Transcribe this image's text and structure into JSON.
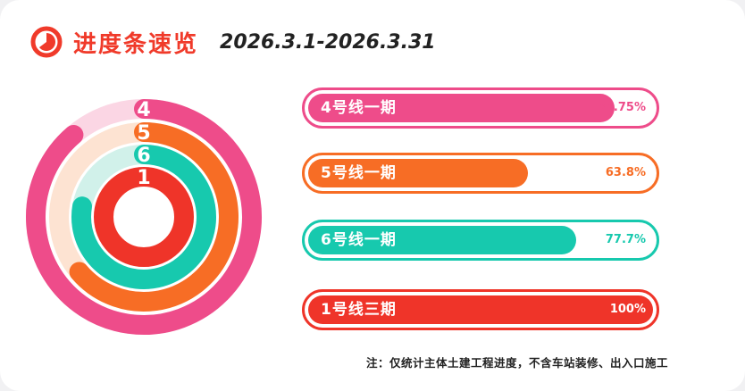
{
  "header": {
    "title": "进度条速览",
    "period": "2026.3.1-2026.3.31"
  },
  "chart_data": {
    "type": "bar",
    "orientation": "horizontal",
    "unit": "%",
    "categories": [
      "4号线一期",
      "5号线一期",
      "6号线一期",
      "1号线三期"
    ],
    "values": [
      88.75,
      63.8,
      77.7,
      100
    ],
    "value_labels": [
      "88.75%",
      "63.8%",
      "77.7%",
      "100%"
    ],
    "ring_labels": [
      "4",
      "5",
      "6",
      "1"
    ],
    "colors": [
      "#ee4c8a",
      "#f76d25",
      "#17c9ae",
      "#ef3429"
    ],
    "track_colors": [
      "#fbd6e4",
      "#fde3d2",
      "#d1f1ea",
      "#fbd3d0"
    ],
    "xlim": [
      0,
      100
    ],
    "grid": false,
    "legend": "none"
  },
  "note": "注：仅统计主体土建工程进度，不含车站装修、出入口施工"
}
